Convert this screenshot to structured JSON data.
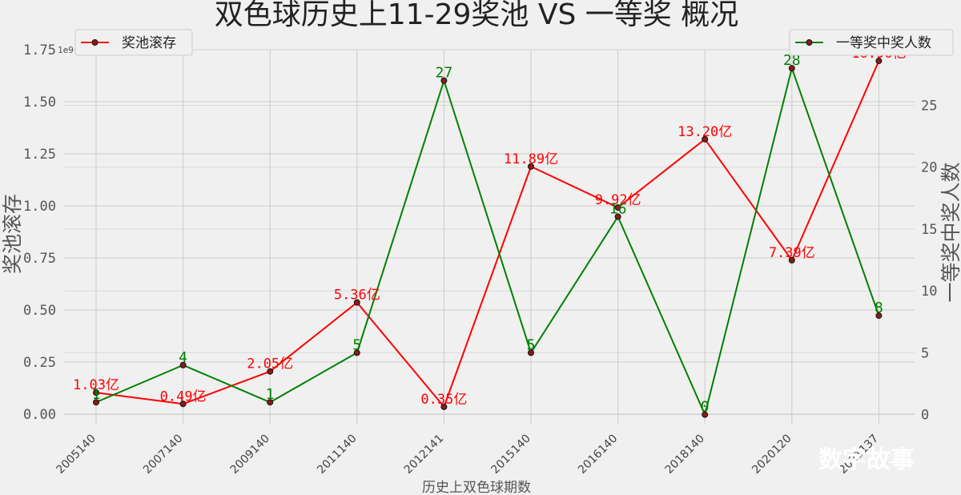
{
  "chart_data": {
    "type": "line",
    "title": "双色球历史上11-29奖池 VS 一等奖 概况",
    "xlabel": "历史上双色球期数",
    "ylabel_left": "奖池滚存",
    "ylabel_right": "一等奖中奖人数",
    "left_axis_exponent": "1e9",
    "categories": [
      "2005140",
      "2007140",
      "2009140",
      "2011140",
      "2012141",
      "2015140",
      "2016140",
      "2018140",
      "2020120",
      "2021137"
    ],
    "series": [
      {
        "name": "奖池滚存",
        "axis": "left",
        "color": "#ff0000",
        "values": [
          103000000,
          49000000,
          205000000,
          536000000,
          35000000,
          1189000000,
          992000000,
          1320000000,
          739000000,
          1696000000
        ],
        "labels": [
          "1.03亿",
          "0.49亿",
          "2.05亿",
          "5.36亿",
          "0.35亿",
          "11.89亿",
          "9.92亿",
          "13.20亿",
          "7.39亿",
          "16.96亿"
        ]
      },
      {
        "name": "一等奖中奖人数",
        "axis": "right",
        "color": "#008000",
        "values": [
          1,
          4,
          1,
          5,
          27,
          5,
          16,
          0,
          28,
          8
        ],
        "labels": [
          "1",
          "4",
          "1",
          "5",
          "27",
          "5",
          "16",
          "0",
          "28",
          "8"
        ]
      }
    ],
    "ylim_left": [
      -0.05,
      1.75
    ],
    "ylim_right": [
      -0.8,
      29.5
    ],
    "yticks_left": [
      "0.00",
      "0.25",
      "0.50",
      "0.75",
      "1.00",
      "1.25",
      "1.50",
      "1.75"
    ],
    "yticks_right": [
      "0",
      "5",
      "10",
      "15",
      "20",
      "25"
    ],
    "grid": true,
    "legend_left_position": "top-left",
    "legend_right_position": "top-right"
  },
  "watermark": "数字故事"
}
